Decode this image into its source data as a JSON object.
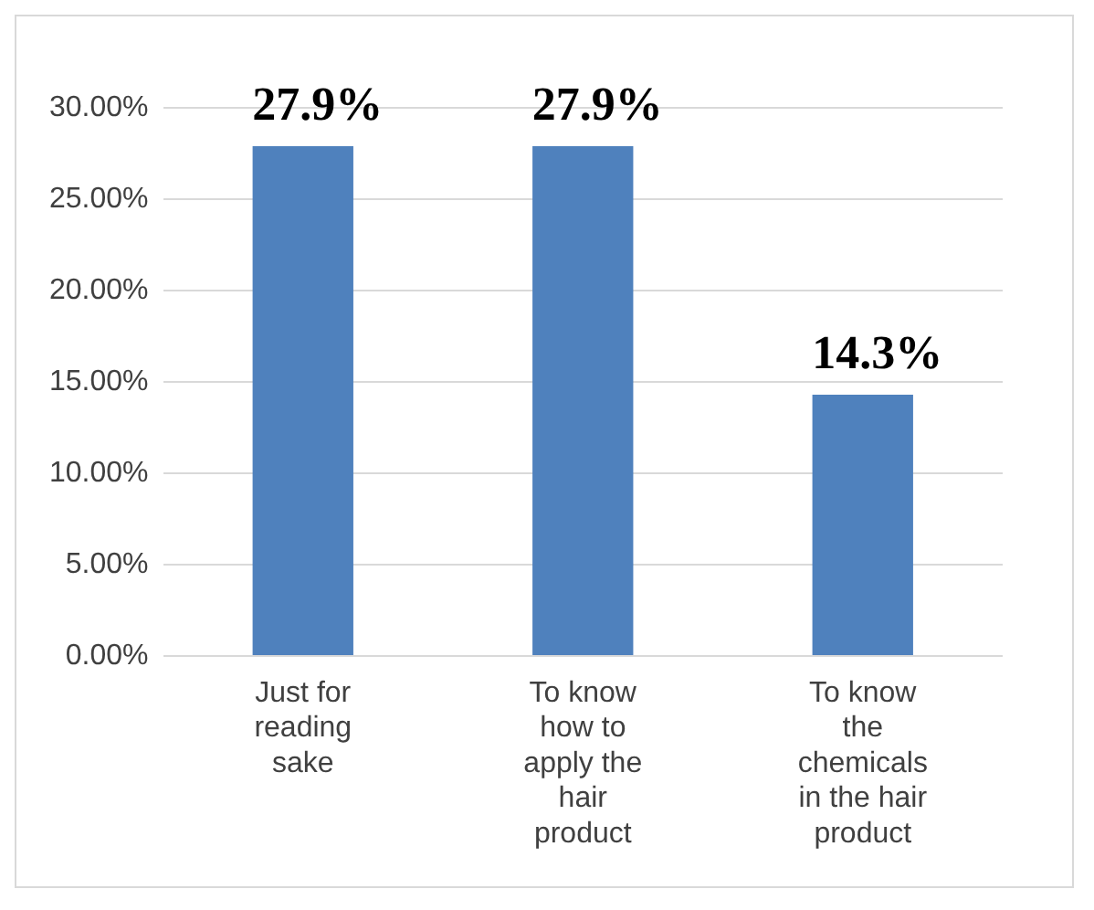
{
  "chart_data": {
    "type": "bar",
    "categories": [
      "Just for reading sake",
      "To know how to apply the hair product",
      "To know the chemicals in the hair product"
    ],
    "values": [
      27.9,
      27.9,
      14.3
    ],
    "color": "#4f81bd",
    "value_labels": [
      "27.9%",
      "27.9%",
      "14.3%"
    ],
    "ylim": [
      0,
      30
    ],
    "yticks": [
      {
        "value": 0,
        "label": "0.00%"
      },
      {
        "value": 5,
        "label": "5.00%"
      },
      {
        "value": 10,
        "label": "10.00%"
      },
      {
        "value": 15,
        "label": "15.00%"
      },
      {
        "value": 20,
        "label": "20.00%"
      },
      {
        "value": 25,
        "label": "25.00%"
      },
      {
        "value": 30,
        "label": "30.00%"
      }
    ],
    "grid": true
  }
}
